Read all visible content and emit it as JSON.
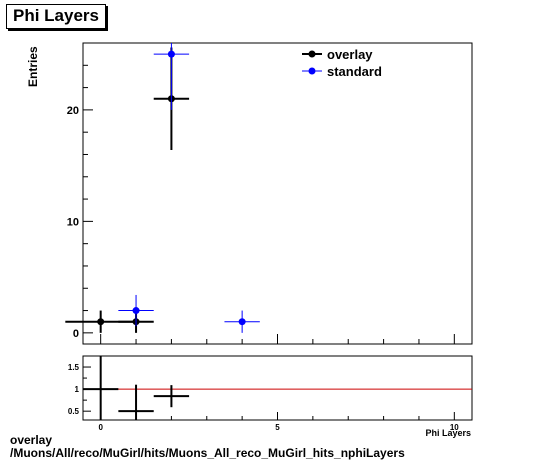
{
  "title": "Phi Layers",
  "footer": {
    "line1": "overlay",
    "line2": "/Muons/All/reco/MuGirl/hits/Muons_All_reco_MuGirl_hits_nphiLayers"
  },
  "colors": {
    "overlay": "#000000",
    "standard": "#0000ff",
    "ratio_line": "#cc0000"
  },
  "chart_data": [
    {
      "type": "scatter",
      "title": "Phi Layers",
      "xlabel": "Phi Layers",
      "ylabel": "Entries",
      "xlim": [
        -0.5,
        10.5
      ],
      "ylim": [
        -1,
        26
      ],
      "yticks": [
        0,
        10,
        20
      ],
      "legend": "top-right",
      "series": [
        {
          "name": "overlay",
          "points": [
            {
              "x": 0,
              "y": 1,
              "xerr": 1.0,
              "yerr": 1.0
            },
            {
              "x": 1,
              "y": 1,
              "xerr": 0.5,
              "yerr": 1.0
            },
            {
              "x": 2,
              "y": 21,
              "xerr": 0.5,
              "yerr": 4.6
            }
          ]
        },
        {
          "name": "standard",
          "points": [
            {
              "x": 1,
              "y": 2,
              "xerr": 0.5,
              "yerr": 1.4
            },
            {
              "x": 2,
              "y": 25,
              "xerr": 0.5,
              "yerr": 5.0
            },
            {
              "x": 4,
              "y": 1,
              "xerr": 0.5,
              "yerr": 1.0
            }
          ]
        }
      ]
    },
    {
      "type": "scatter",
      "xlabel": "",
      "ylabel": "",
      "xlim": [
        -0.5,
        10.5
      ],
      "ylim": [
        0.3,
        1.75
      ],
      "xticks": [
        0,
        5,
        10
      ],
      "yticks": [
        0.5,
        1,
        1.5
      ],
      "reference_line": 1,
      "series": [
        {
          "points": [
            {
              "x": 0,
              "y": 1.0,
              "xerr": 0.5,
              "yerr": 1.0
            },
            {
              "x": 1,
              "y": 0.5,
              "xerr": 0.5,
              "yerr": 0.6
            },
            {
              "x": 2,
              "y": 0.84,
              "xerr": 0.5,
              "yerr": 0.25
            }
          ]
        }
      ]
    }
  ]
}
